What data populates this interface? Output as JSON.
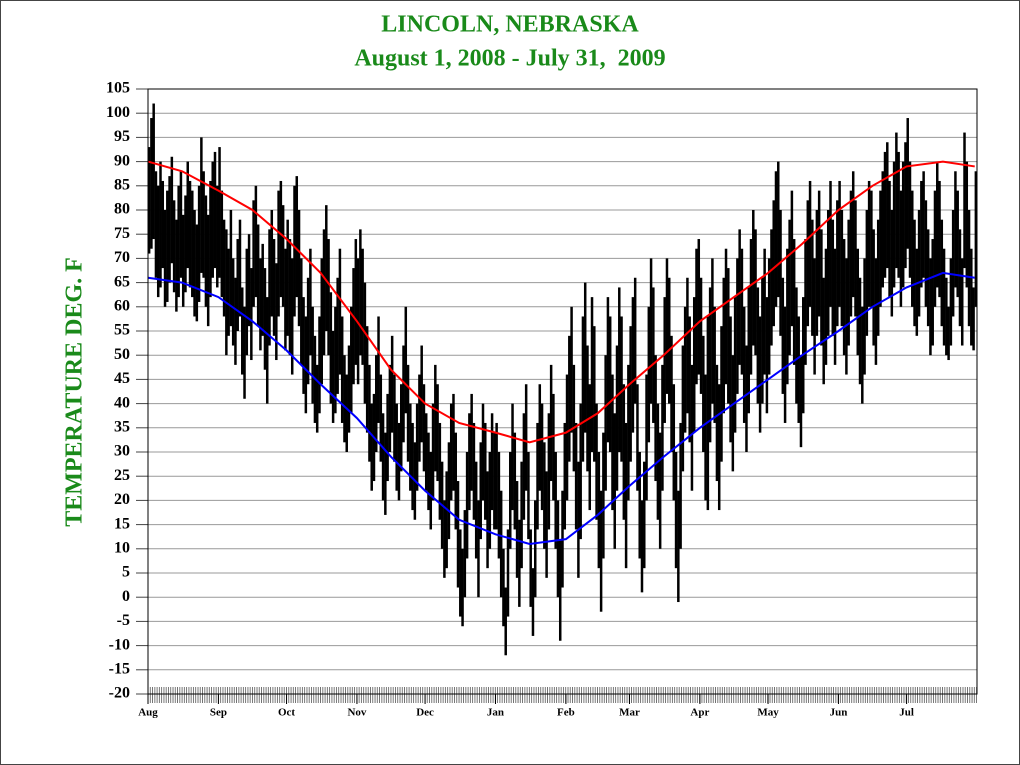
{
  "chart_data": {
    "type": "range-bar",
    "title": "LINCOLN, NEBRASKA",
    "subtitle": "August 1, 2008 - July 31,  2009",
    "y_label": "TEMPERATURE DEG. F",
    "color": "#000000",
    "highs": [
      93,
      99,
      102,
      88,
      85,
      90,
      86,
      80,
      84,
      87,
      91,
      82,
      78,
      85,
      88,
      79,
      83,
      90,
      86,
      84,
      80,
      77,
      85,
      95,
      88,
      83,
      79,
      86,
      90,
      92,
      85,
      93,
      84,
      78,
      76,
      72,
      80,
      70,
      66,
      74,
      78,
      64,
      60,
      72,
      75,
      68,
      82,
      85,
      77,
      70,
      73,
      68,
      62,
      76,
      80,
      74,
      69,
      84,
      86,
      81,
      72,
      78,
      74,
      70,
      85,
      87,
      80,
      70,
      62,
      58,
      66,
      72,
      60,
      54,
      48,
      58,
      70,
      76,
      81,
      74,
      63,
      55,
      60,
      66,
      72,
      58,
      50,
      46,
      52,
      60,
      68,
      74,
      70,
      76,
      72,
      65,
      56,
      48,
      40,
      42,
      50,
      58,
      46,
      38,
      34,
      42,
      48,
      54,
      46,
      40,
      36,
      44,
      52,
      60,
      48,
      40,
      36,
      32,
      40,
      46,
      52,
      44,
      38,
      34,
      30,
      40,
      48,
      44,
      36,
      28,
      20,
      26,
      32,
      40,
      42,
      34,
      24,
      14,
      10,
      18,
      30,
      38,
      42,
      36,
      28,
      20,
      32,
      40,
      36,
      26,
      30,
      38,
      34,
      36,
      30,
      22,
      10,
      2,
      14,
      30,
      40,
      34,
      24,
      16,
      28,
      38,
      44,
      30,
      14,
      6,
      20,
      36,
      44,
      40,
      32,
      26,
      38,
      48,
      42,
      30,
      20,
      12,
      22,
      36,
      46,
      54,
      60,
      48,
      36,
      28,
      40,
      58,
      65,
      52,
      44,
      62,
      56,
      40,
      30,
      22,
      34,
      50,
      62,
      58,
      46,
      38,
      52,
      64,
      58,
      44,
      36,
      48,
      56,
      62,
      66,
      44,
      30,
      20,
      28,
      46,
      60,
      70,
      64,
      50,
      40,
      34,
      48,
      62,
      70,
      66,
      54,
      44,
      30,
      22,
      36,
      52,
      60,
      66,
      58,
      48,
      62,
      72,
      74,
      66,
      54,
      46,
      58,
      64,
      70,
      60,
      48,
      44,
      56,
      66,
      72,
      68,
      58,
      50,
      62,
      70,
      76,
      72,
      60,
      52,
      64,
      74,
      80,
      76,
      64,
      58,
      66,
      72,
      62,
      70,
      76,
      82,
      88,
      90,
      80,
      66,
      60,
      72,
      78,
      84,
      74,
      64,
      58,
      50,
      62,
      74,
      82,
      86,
      78,
      70,
      80,
      84,
      76,
      66,
      72,
      80,
      86,
      78,
      72,
      82,
      86,
      80,
      74,
      70,
      78,
      84,
      88,
      82,
      72,
      66,
      60,
      70,
      80,
      86,
      84,
      76,
      70,
      78,
      84,
      88,
      92,
      94,
      86,
      80,
      90,
      96,
      92,
      84,
      90,
      94,
      99,
      90,
      84,
      78,
      72,
      80,
      86,
      88,
      82,
      76,
      70,
      74,
      84,
      90,
      86,
      78,
      72,
      66,
      60,
      70,
      80,
      88,
      84,
      76,
      70,
      96,
      90,
      80,
      72,
      64,
      88
    ],
    "lows": [
      71,
      72,
      74,
      66,
      62,
      64,
      68,
      60,
      61,
      65,
      69,
      63,
      59,
      62,
      66,
      60,
      63,
      68,
      64,
      62,
      58,
      57,
      61,
      67,
      66,
      60,
      56,
      62,
      66,
      68,
      64,
      66,
      62,
      58,
      50,
      54,
      56,
      52,
      48,
      55,
      58,
      46,
      41,
      50,
      56,
      49,
      60,
      62,
      56,
      51,
      54,
      47,
      40,
      52,
      58,
      54,
      49,
      58,
      62,
      60,
      51,
      54,
      50,
      46,
      58,
      62,
      56,
      48,
      42,
      38,
      44,
      50,
      40,
      36,
      34,
      38,
      44,
      50,
      55,
      50,
      40,
      36,
      38,
      42,
      46,
      36,
      32,
      30,
      34,
      38,
      44,
      48,
      44,
      50,
      48,
      40,
      34,
      28,
      22,
      24,
      30,
      36,
      28,
      20,
      17,
      24,
      30,
      34,
      28,
      22,
      20,
      26,
      32,
      38,
      28,
      22,
      18,
      16,
      22,
      28,
      32,
      26,
      22,
      18,
      14,
      20,
      26,
      24,
      16,
      10,
      4,
      6,
      12,
      20,
      22,
      14,
      2,
      -4,
      -6,
      0,
      8,
      18,
      22,
      16,
      8,
      0,
      12,
      20,
      16,
      6,
      10,
      18,
      14,
      14,
      8,
      0,
      -6,
      -12,
      -4,
      10,
      18,
      14,
      4,
      -2,
      6,
      16,
      22,
      12,
      -2,
      -8,
      0,
      14,
      22,
      18,
      10,
      4,
      14,
      24,
      20,
      10,
      0,
      -9,
      2,
      14,
      20,
      28,
      34,
      26,
      14,
      4,
      12,
      28,
      34,
      26,
      18,
      30,
      28,
      16,
      6,
      -3,
      8,
      22,
      32,
      30,
      18,
      10,
      22,
      30,
      28,
      16,
      6,
      20,
      28,
      34,
      40,
      22,
      8,
      1,
      6,
      20,
      32,
      40,
      36,
      24,
      16,
      10,
      22,
      36,
      42,
      40,
      30,
      20,
      6,
      -1,
      10,
      26,
      34,
      38,
      32,
      22,
      34,
      44,
      46,
      42,
      30,
      20,
      18,
      32,
      40,
      36,
      24,
      18,
      28,
      38,
      44,
      40,
      32,
      26,
      34,
      42,
      48,
      46,
      36,
      30,
      38,
      46,
      52,
      50,
      40,
      34,
      40,
      46,
      38,
      46,
      52,
      56,
      60,
      62,
      54,
      42,
      36,
      44,
      50,
      56,
      48,
      40,
      36,
      31,
      38,
      48,
      56,
      60,
      54,
      46,
      54,
      58,
      52,
      44,
      48,
      54,
      60,
      54,
      48,
      56,
      60,
      56,
      50,
      46,
      52,
      58,
      62,
      58,
      50,
      44,
      40,
      46,
      54,
      60,
      60,
      52,
      48,
      54,
      60,
      64,
      66,
      68,
      62,
      58,
      64,
      68,
      66,
      60,
      64,
      68,
      72,
      66,
      60,
      56,
      54,
      58,
      64,
      66,
      60,
      56,
      50,
      52,
      60,
      64,
      62,
      56,
      52,
      50,
      49,
      52,
      58,
      64,
      62,
      56,
      52,
      68,
      64,
      56,
      52,
      51,
      60
    ],
    "lines": [
      {
        "color": "#ff0000",
        "x": [
          0,
          15,
          31,
          46,
          61,
          76,
          92,
          107,
          122,
          137,
          153,
          168,
          184,
          198,
          212,
          227,
          243,
          258,
          273,
          288,
          304,
          319,
          334,
          350,
          364
        ],
        "values": [
          90,
          88,
          84,
          80,
          74,
          67,
          57,
          47,
          40,
          36,
          34,
          32,
          34,
          38,
          44,
          50,
          57,
          62,
          67,
          73,
          80,
          85,
          89,
          90,
          89
        ]
      },
      {
        "color": "#0000ff",
        "x": [
          0,
          15,
          31,
          46,
          61,
          76,
          92,
          107,
          122,
          137,
          153,
          168,
          184,
          198,
          212,
          227,
          243,
          258,
          273,
          288,
          304,
          319,
          334,
          350,
          364
        ],
        "values": [
          66,
          65,
          62,
          57,
          51,
          44,
          37,
          29,
          22,
          16,
          13,
          11,
          12,
          17,
          23,
          29,
          35,
          40,
          45,
          50,
          55,
          60,
          64,
          67,
          66
        ]
      }
    ],
    "xlim": [
      0,
      365
    ],
    "xticks": [
      {
        "value": 0,
        "label": "Aug"
      },
      {
        "value": 31,
        "label": "Sep"
      },
      {
        "value": 61,
        "label": "Oct"
      },
      {
        "value": 92,
        "label": "Nov"
      },
      {
        "value": 122,
        "label": "Dec"
      },
      {
        "value": 153,
        "label": "Jan"
      },
      {
        "value": 184,
        "label": "Feb"
      },
      {
        "value": 212,
        "label": "Mar"
      },
      {
        "value": 243,
        "label": "Apr"
      },
      {
        "value": 273,
        "label": "May"
      },
      {
        "value": 304,
        "label": "Jun"
      },
      {
        "value": 334,
        "label": "Jul"
      }
    ],
    "ylim": [
      -20,
      105
    ],
    "yticks": [
      -20,
      -15,
      -10,
      -5,
      0,
      5,
      10,
      15,
      20,
      25,
      30,
      35,
      40,
      45,
      50,
      55,
      60,
      65,
      70,
      75,
      80,
      85,
      90,
      95,
      100,
      105
    ],
    "grid": true
  }
}
